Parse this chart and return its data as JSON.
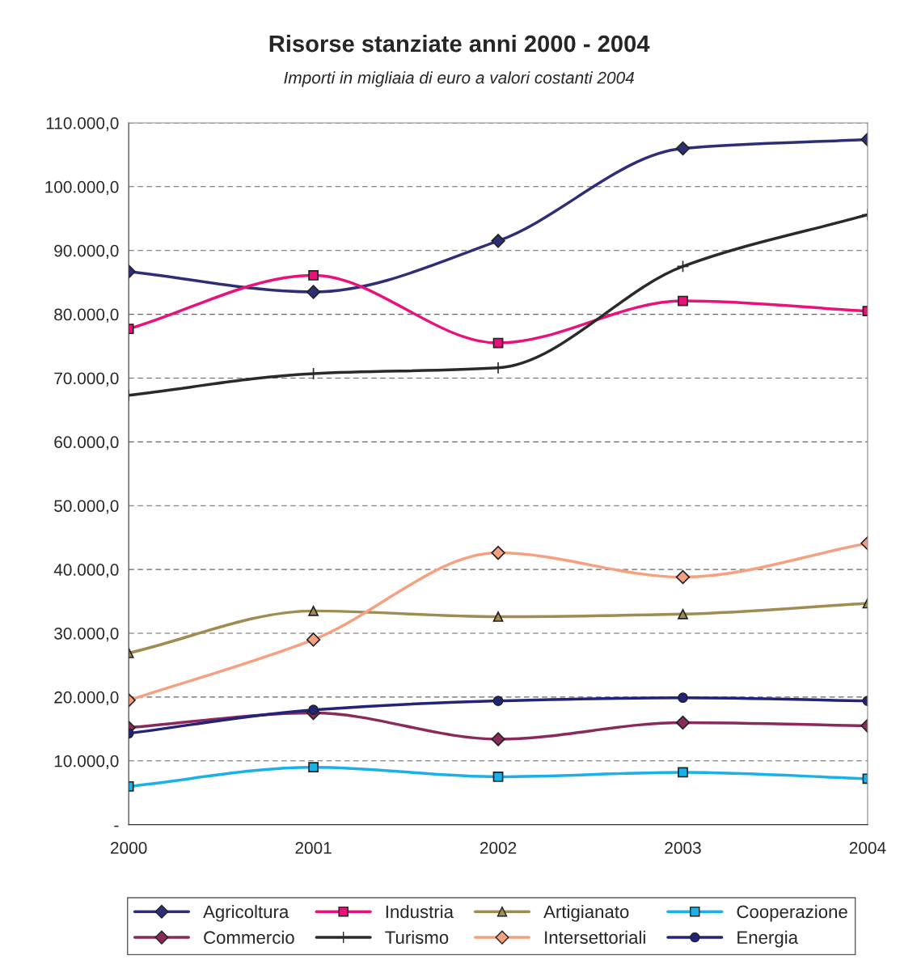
{
  "chart_data": {
    "type": "line",
    "title": "Risorse stanziate anni 2000 - 2004",
    "subtitle": "Importi in migliaia di euro a valori costanti 2004",
    "x": [
      2000,
      2001,
      2002,
      2003,
      2004
    ],
    "series": [
      {
        "name": "Agricoltura",
        "color": "#2e2e78",
        "marker": "diamond",
        "values": [
          86700,
          83500,
          91500,
          106000,
          107400
        ]
      },
      {
        "name": "Industria",
        "color": "#e8127a",
        "marker": "square",
        "values": [
          77700,
          86100,
          75500,
          82100,
          80500
        ]
      },
      {
        "name": "Artigianato",
        "color": "#a08c50",
        "marker": "triangle",
        "values": [
          26900,
          33500,
          32600,
          33000,
          34700
        ]
      },
      {
        "name": "Cooperazione",
        "color": "#1ab0e8",
        "marker": "square",
        "values": [
          6000,
          9000,
          7500,
          8200,
          7200
        ]
      },
      {
        "name": "Commercio",
        "color": "#8b2a5a",
        "marker": "diamond",
        "values": [
          15200,
          17500,
          13400,
          16000,
          15500
        ]
      },
      {
        "name": "Turismo",
        "color": "#2a2a2a",
        "marker": "cross",
        "values": [
          67300,
          70700,
          71600,
          87500,
          95600
        ]
      },
      {
        "name": "Intersettoriali",
        "color": "#f7a080",
        "marker": "diamond",
        "values": [
          19500,
          29000,
          42600,
          38800,
          44100
        ]
      },
      {
        "name": "Energia",
        "color": "#22237a",
        "marker": "circle",
        "values": [
          14300,
          18000,
          19400,
          19900,
          19400
        ]
      }
    ],
    "xlim": [
      2000,
      2004
    ],
    "xticks": [
      2000,
      2001,
      2002,
      2003,
      2004
    ],
    "ylim": [
      0,
      110000
    ],
    "yticks": [
      {
        "value": 0,
        "label": "-"
      },
      {
        "value": 10000,
        "label": "10.000,0"
      },
      {
        "value": 20000,
        "label": "20.000,0"
      },
      {
        "value": 30000,
        "label": "30.000,0"
      },
      {
        "value": 40000,
        "label": "40.000,0"
      },
      {
        "value": 50000,
        "label": "50.000,0"
      },
      {
        "value": 60000,
        "label": "60.000,0"
      },
      {
        "value": 70000,
        "label": "70.000,0"
      },
      {
        "value": 80000,
        "label": "80.000,0"
      },
      {
        "value": 90000,
        "label": "90.000,0"
      },
      {
        "value": 100000,
        "label": "100.000,0"
      },
      {
        "value": 110000,
        "label": "110.000,0"
      }
    ],
    "grid": "y",
    "legend": "bottom",
    "line_style": "solid"
  }
}
